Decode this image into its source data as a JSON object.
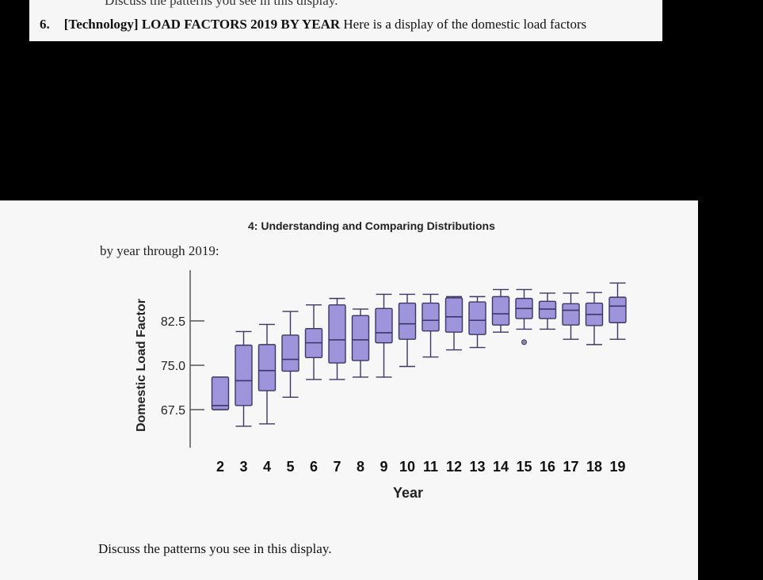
{
  "problem": {
    "cut_text": "Discuss the patterns you see in this display.",
    "number": "6.",
    "tag": "[Technology]",
    "title": "LOAD FACTORS 2019 BY YEAR",
    "text": "Here is a display of the domestic load factors"
  },
  "page": {
    "header": "4: Understanding and Comparing Distributions",
    "intro": "by year through 2019:",
    "closing": "Discuss the patterns you see in this display."
  },
  "colors": {
    "box_fill": "#9d94dc",
    "box_stroke": "#3c3666",
    "axis": "#555555",
    "page_bg": "#f7f7f7"
  },
  "chart_data": {
    "type": "boxplot",
    "xlabel": "Year",
    "ylabel": "Domestic Load Factor",
    "yticks": [
      67.5,
      75.0,
      82.5
    ],
    "ytick_labels": [
      "67.5",
      "75.0",
      "82.5"
    ],
    "ylim": [
      62,
      89.5
    ],
    "categories": [
      "2",
      "3",
      "4",
      "5",
      "6",
      "7",
      "8",
      "9",
      "10",
      "11",
      "12",
      "13",
      "14",
      "15",
      "16",
      "17",
      "18",
      "19"
    ],
    "boxes": [
      {
        "min": 67.5,
        "q1": 67.5,
        "median": 68.2,
        "q3": 73.0,
        "max": 73.0
      },
      {
        "min": 64.7,
        "q1": 68.2,
        "median": 72.4,
        "q3": 78.4,
        "max": 80.7
      },
      {
        "min": 65.1,
        "q1": 70.7,
        "median": 74.1,
        "q3": 78.5,
        "max": 81.9
      },
      {
        "min": 69.6,
        "q1": 74.0,
        "median": 76.0,
        "q3": 80.1,
        "max": 84.1
      },
      {
        "min": 72.6,
        "q1": 76.3,
        "median": 78.8,
        "q3": 81.2,
        "max": 85.2
      },
      {
        "min": 72.6,
        "q1": 75.4,
        "median": 79.3,
        "q3": 85.2,
        "max": 86.3
      },
      {
        "min": 73.0,
        "q1": 75.8,
        "median": 79.3,
        "q3": 83.4,
        "max": 84.5
      },
      {
        "min": 73.0,
        "q1": 78.8,
        "median": 80.5,
        "q3": 84.6,
        "max": 87.0
      },
      {
        "min": 74.8,
        "q1": 79.4,
        "median": 82.0,
        "q3": 85.5,
        "max": 87.0
      },
      {
        "min": 76.4,
        "q1": 80.8,
        "median": 82.6,
        "q3": 85.5,
        "max": 87.0
      },
      {
        "min": 77.6,
        "q1": 80.6,
        "median": 83.2,
        "q3": 86.4,
        "max": 86.6
      },
      {
        "min": 78.0,
        "q1": 80.2,
        "median": 82.6,
        "q3": 85.7,
        "max": 86.6
      },
      {
        "min": 80.6,
        "q1": 81.8,
        "median": 83.7,
        "q3": 86.6,
        "max": 87.8
      },
      {
        "min": 81.1,
        "q1": 82.9,
        "median": 84.6,
        "q3": 86.3,
        "max": 87.8,
        "outliers": [
          78.9
        ]
      },
      {
        "min": 81.1,
        "q1": 82.9,
        "median": 84.5,
        "q3": 85.8,
        "max": 87.2
      },
      {
        "min": 79.4,
        "q1": 81.8,
        "median": 84.3,
        "q3": 85.4,
        "max": 87.2
      },
      {
        "min": 78.5,
        "q1": 81.7,
        "median": 83.6,
        "q3": 85.5,
        "max": 87.3
      },
      {
        "min": 79.4,
        "q1": 82.2,
        "median": 85.0,
        "q3": 86.5,
        "max": 88.9
      }
    ]
  }
}
